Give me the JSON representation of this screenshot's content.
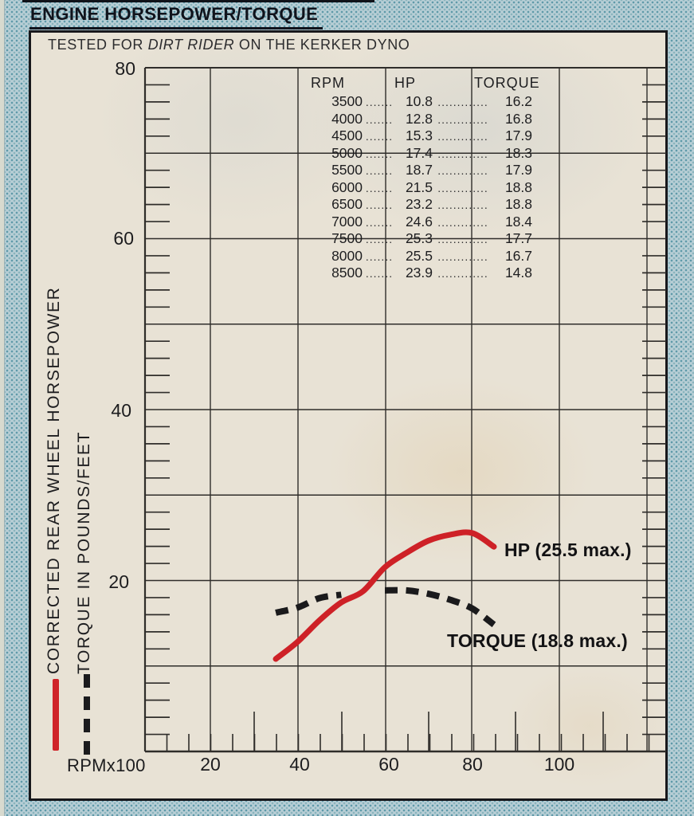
{
  "title": "ENGINE HORSEPOWER/TORQUE",
  "subtitle": {
    "pre": "TESTED FOR ",
    "em": "DIRT RIDER",
    "post": " ON THE KERKER DYNO"
  },
  "axes": {
    "x_axis_title": "RPMx100",
    "x_tick_labels": [
      "20",
      "40",
      "60",
      "80",
      "100"
    ],
    "y_tick_labels": [
      "80",
      "60",
      "40",
      "20"
    ],
    "y_axis_title_hp": "CORRECTED REAR WHEEL HORSEPOWER",
    "y_axis_title_torque": "TORQUE IN POUNDS/FEET"
  },
  "annotations": {
    "hp_max": "HP (25.5 max.)",
    "torque_max": "TORQUE (18.8 max.)"
  },
  "table": {
    "headers": [
      "RPM",
      "HP",
      "TORQUE"
    ],
    "leaders": [
      ".......",
      "............."
    ]
  },
  "colors": {
    "hp_curve": "#ce2127",
    "torque_curve": "#1a1a1c",
    "ink": "#2f2d2a",
    "paper": "#e8e2d5",
    "halftone": "#5f9aa9"
  },
  "chart_data": {
    "type": "line",
    "title": "ENGINE HORSEPOWER/TORQUE",
    "subtitle": "TESTED FOR DIRT RIDER ON THE KERKER DYNO",
    "xlabel": "RPMx100",
    "ylabels": [
      "CORRECTED REAR WHEEL HORSEPOWER",
      "TORQUE IN POUNDS/FEET"
    ],
    "x_rpm": [
      3500,
      4000,
      4500,
      5000,
      5500,
      6000,
      6500,
      7000,
      7500,
      8000,
      8500
    ],
    "series": [
      {
        "name": "HP",
        "style": "solid",
        "color": "#ce2127",
        "values": [
          10.8,
          12.8,
          15.3,
          17.4,
          18.7,
          21.5,
          23.2,
          24.6,
          25.3,
          25.5,
          23.9
        ],
        "max": 25.5
      },
      {
        "name": "TORQUE",
        "style": "dashed",
        "color": "#1a1a1c",
        "values": [
          16.2,
          16.8,
          17.9,
          18.3,
          17.9,
          18.8,
          18.8,
          18.4,
          17.7,
          16.7,
          14.8
        ],
        "max": 18.8
      }
    ],
    "x_ticks": [
      20,
      40,
      60,
      80,
      100
    ],
    "y_ticks": [
      0,
      20,
      40,
      60,
      80
    ],
    "xlim": [
      5,
      123
    ],
    "ylim": [
      0,
      80
    ],
    "grid": true,
    "legend_position": "left-margin"
  }
}
